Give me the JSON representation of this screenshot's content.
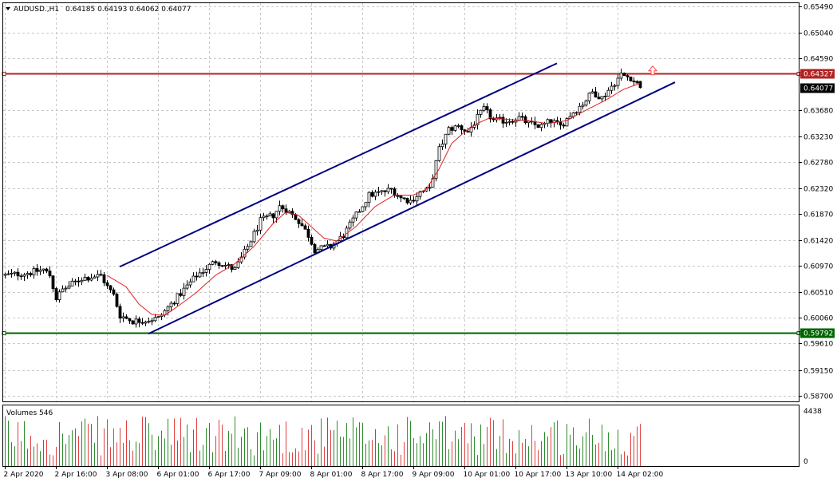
{
  "header": {
    "symbol_timeframe": "AUDUSD.,H1",
    "ohlc": "0.64185 0.64193 0.64062 0.64077"
  },
  "volume_panel": {
    "label": "Volumes 546",
    "axis_top": "4438",
    "axis_bottom": "0"
  },
  "price_axis_labels": [
    "0.65490",
    "0.65040",
    "0.64590",
    "0.63680",
    "0.63230",
    "0.62780",
    "0.62320",
    "0.61870",
    "0.61420",
    "0.60970",
    "0.60510",
    "0.60060",
    "0.59610",
    "0.59150",
    "0.58700"
  ],
  "time_axis_labels": [
    "2 Apr 2020",
    "2 Apr 16:00",
    "3 Apr 08:00",
    "6 Apr 01:00",
    "6 Apr 17:00",
    "7 Apr 09:00",
    "8 Apr 01:00",
    "8 Apr 17:00",
    "9 Apr 09:00",
    "10 Apr 01:00",
    "10 Apr 17:00",
    "13 Apr 10:00",
    "14 Apr 02:00"
  ],
  "horizontal_lines": [
    {
      "name": "resistance-line",
      "price": 0.64327,
      "label": "0.64327",
      "color": "#b22222"
    },
    {
      "name": "support-line",
      "price": 0.59792,
      "label": "0.59792",
      "color": "#006400"
    }
  ],
  "current_price_label": "0.64077",
  "colors": {
    "channel": "#000080",
    "ma": "#e02020",
    "vol_up": "#2e8b2e",
    "vol_down": "#e04040",
    "grid": "#c8c8c8",
    "arrow": "#ff4040"
  },
  "chart_data": {
    "type": "candlestick",
    "symbol": "AUDUSD.",
    "timeframe": "H1",
    "ylim": [
      0.586,
      0.6555
    ],
    "y_ticks": [
      0.6549,
      0.6504,
      0.6459,
      0.6368,
      0.6323,
      0.6278,
      0.6232,
      0.6187,
      0.6142,
      0.6097,
      0.6051,
      0.6006,
      0.5961,
      0.5915,
      0.587
    ],
    "x_tick_labels": [
      "2 Apr 2020",
      "2 Apr 16:00",
      "3 Apr 08:00",
      "6 Apr 01:00",
      "6 Apr 17:00",
      "7 Apr 09:00",
      "8 Apr 01:00",
      "8 Apr 17:00",
      "9 Apr 09:00",
      "10 Apr 01:00",
      "10 Apr 17:00",
      "13 Apr 10:00",
      "14 Apr 02:00"
    ],
    "bar_count": 200,
    "last_bar": {
      "open": 0.64185,
      "high": 0.64193,
      "low": 0.64062,
      "close": 0.64077
    },
    "close_profile": [
      [
        0,
        0.608
      ],
      [
        8,
        0.6085
      ],
      [
        12,
        0.609
      ],
      [
        14,
        0.608
      ],
      [
        16,
        0.604
      ],
      [
        18,
        0.6055
      ],
      [
        24,
        0.6075
      ],
      [
        30,
        0.608
      ],
      [
        32,
        0.606
      ],
      [
        34,
        0.6045
      ],
      [
        36,
        0.601
      ],
      [
        40,
        0.6
      ],
      [
        44,
        0.6002
      ],
      [
        48,
        0.6005
      ],
      [
        52,
        0.603
      ],
      [
        56,
        0.6055
      ],
      [
        60,
        0.608
      ],
      [
        66,
        0.6105
      ],
      [
        72,
        0.609
      ],
      [
        76,
        0.613
      ],
      [
        80,
        0.6175
      ],
      [
        84,
        0.6185
      ],
      [
        86,
        0.62
      ],
      [
        88,
        0.6195
      ],
      [
        92,
        0.6175
      ],
      [
        95,
        0.615
      ],
      [
        97,
        0.6125
      ],
      [
        102,
        0.613
      ],
      [
        106,
        0.615
      ],
      [
        110,
        0.6185
      ],
      [
        114,
        0.622
      ],
      [
        118,
        0.6225
      ],
      [
        121,
        0.623
      ],
      [
        124,
        0.6215
      ],
      [
        127,
        0.621
      ],
      [
        130,
        0.6225
      ],
      [
        133,
        0.623
      ],
      [
        136,
        0.63
      ],
      [
        139,
        0.6335
      ],
      [
        142,
        0.634
      ],
      [
        145,
        0.633
      ],
      [
        148,
        0.6355
      ],
      [
        150,
        0.637
      ],
      [
        153,
        0.635
      ],
      [
        157,
        0.635
      ],
      [
        161,
        0.6355
      ],
      [
        164,
        0.6345
      ],
      [
        168,
        0.634
      ],
      [
        171,
        0.635
      ],
      [
        174,
        0.634
      ],
      [
        177,
        0.636
      ],
      [
        181,
        0.638
      ],
      [
        184,
        0.64
      ],
      [
        187,
        0.639
      ],
      [
        190,
        0.641
      ],
      [
        193,
        0.643
      ],
      [
        196,
        0.6425
      ],
      [
        199,
        0.64077
      ]
    ],
    "ma_profile": [
      [
        32,
        0.608
      ],
      [
        38,
        0.606
      ],
      [
        42,
        0.603
      ],
      [
        46,
        0.6012
      ],
      [
        50,
        0.601
      ],
      [
        54,
        0.6025
      ],
      [
        60,
        0.605
      ],
      [
        66,
        0.608
      ],
      [
        72,
        0.61
      ],
      [
        78,
        0.613
      ],
      [
        84,
        0.617
      ],
      [
        88,
        0.619
      ],
      [
        92,
        0.6185
      ],
      [
        96,
        0.6165
      ],
      [
        100,
        0.6145
      ],
      [
        104,
        0.614
      ],
      [
        110,
        0.6165
      ],
      [
        116,
        0.62
      ],
      [
        122,
        0.622
      ],
      [
        128,
        0.622
      ],
      [
        132,
        0.623
      ],
      [
        136,
        0.6265
      ],
      [
        140,
        0.631
      ],
      [
        144,
        0.633
      ],
      [
        148,
        0.6345
      ],
      [
        152,
        0.6355
      ],
      [
        158,
        0.6352
      ],
      [
        164,
        0.635
      ],
      [
        170,
        0.6345
      ],
      [
        176,
        0.635
      ],
      [
        182,
        0.6368
      ],
      [
        188,
        0.6385
      ],
      [
        194,
        0.6405
      ],
      [
        199,
        0.6415
      ]
    ],
    "channel_lines": [
      {
        "name": "upper-channel",
        "from": [
          36,
          0.6095
        ],
        "to": [
          173,
          0.645
        ]
      },
      {
        "name": "lower-channel",
        "from": [
          45,
          0.5978
        ],
        "to": [
          210,
          0.6417
        ]
      }
    ],
    "volume_max": 4438
  }
}
